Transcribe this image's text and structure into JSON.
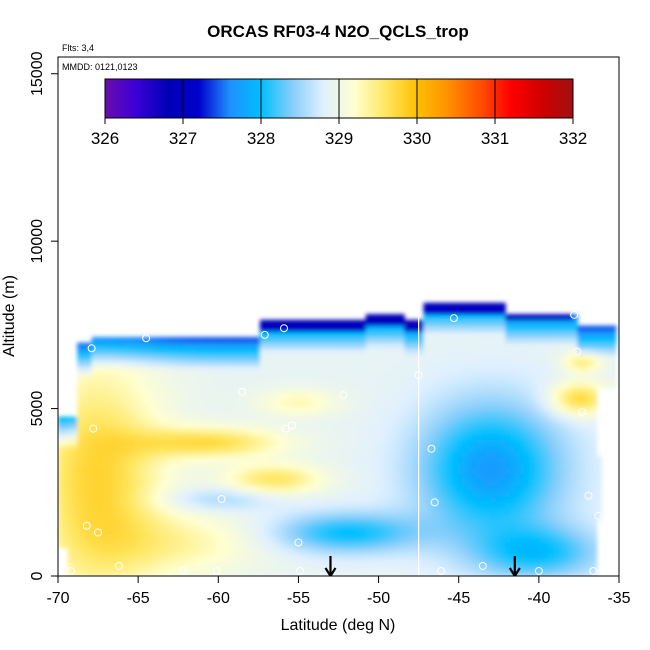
{
  "chart_data": {
    "type": "heatmap",
    "title": "ORCAS RF03-4 N2O_QCLS_trop",
    "flights_note": "Flts: 3,4",
    "date_note": "MMDD: 0121,0123",
    "xlabel": "Latitude (deg N)",
    "ylabel": "Altitude (m)",
    "xlim": [
      -70,
      -35
    ],
    "ylim": [
      0,
      15500
    ],
    "xticks": [
      -70,
      -65,
      -60,
      -55,
      -50,
      -45,
      -40,
      -35
    ],
    "yticks": [
      0,
      5000,
      10000,
      15000
    ],
    "colorbar": {
      "min": 326,
      "max": 332,
      "ticks": [
        326,
        327,
        328,
        329,
        330,
        331,
        332
      ],
      "colors": [
        "#6a0dad",
        "#3a00d8",
        "#0000b4",
        "#0000cc",
        "#1e90ff",
        "#00bfff",
        "#87cefa",
        "#e0f0ff",
        "#ffffd0",
        "#ffe660",
        "#ffc000",
        "#ff9000",
        "#ff5000",
        "#ff0000",
        "#d00000",
        "#a01010"
      ]
    },
    "profile_marker_lat": -47.5,
    "arrows_lat": [
      -53,
      -41.5
    ],
    "observation_points": [
      {
        "lat": -69.2,
        "alt": 150
      },
      {
        "lat": -68.2,
        "alt": 1500
      },
      {
        "lat": -67.5,
        "alt": 1300
      },
      {
        "lat": -66.2,
        "alt": 300
      },
      {
        "lat": -67.8,
        "alt": 4400
      },
      {
        "lat": -67.9,
        "alt": 6800
      },
      {
        "lat": -64.5,
        "alt": 7100
      },
      {
        "lat": -62.2,
        "alt": 150
      },
      {
        "lat": -60.1,
        "alt": 150
      },
      {
        "lat": -59.8,
        "alt": 2300
      },
      {
        "lat": -58.5,
        "alt": 5500
      },
      {
        "lat": -57.1,
        "alt": 7200
      },
      {
        "lat": -55.9,
        "alt": 7400
      },
      {
        "lat": -55.8,
        "alt": 4400
      },
      {
        "lat": -55.4,
        "alt": 4500
      },
      {
        "lat": -55.0,
        "alt": 1000
      },
      {
        "lat": -54.9,
        "alt": 150
      },
      {
        "lat": -52.2,
        "alt": 5400
      },
      {
        "lat": -47.5,
        "alt": 6000
      },
      {
        "lat": -46.7,
        "alt": 3800
      },
      {
        "lat": -46.5,
        "alt": 2200
      },
      {
        "lat": -46.1,
        "alt": 150
      },
      {
        "lat": -45.3,
        "alt": 7700
      },
      {
        "lat": -43.5,
        "alt": 300
      },
      {
        "lat": -40.0,
        "alt": 150
      },
      {
        "lat": -37.8,
        "alt": 7800
      },
      {
        "lat": -37.6,
        "alt": 6700
      },
      {
        "lat": -37.3,
        "alt": 4900
      },
      {
        "lat": -36.9,
        "alt": 2400
      },
      {
        "lat": -36.6,
        "alt": 150
      },
      {
        "lat": -36.3,
        "alt": 1800
      }
    ]
  }
}
